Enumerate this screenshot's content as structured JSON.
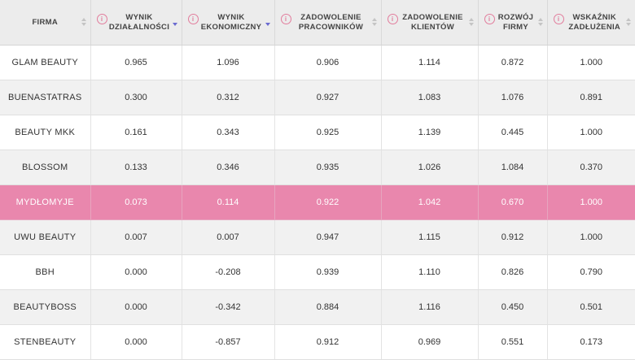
{
  "table": {
    "columns": [
      {
        "id": "firma",
        "lines": [
          "Firma"
        ],
        "info": false,
        "sort": "none"
      },
      {
        "id": "wynik-dzialalnosci",
        "lines": [
          "Wynik",
          "Działalności"
        ],
        "info": true,
        "sort": "desc"
      },
      {
        "id": "wynik-ekonomiczny",
        "lines": [
          "Wynik",
          "Ekonomiczny"
        ],
        "info": true,
        "sort": "desc"
      },
      {
        "id": "zadowolenie-pracownikow",
        "lines": [
          "Zadowolenie",
          "Pracowników"
        ],
        "info": true,
        "sort": "none"
      },
      {
        "id": "zadowolenie-klientow",
        "lines": [
          "Zadowolenie",
          "Klientów"
        ],
        "info": true,
        "sort": "none"
      },
      {
        "id": "rozwoj-firmy",
        "lines": [
          "Rozwój",
          "Firmy"
        ],
        "info": true,
        "sort": "none"
      },
      {
        "id": "wskaznik-zadluzenia",
        "lines": [
          "Wskaźnik",
          "Zadłużenia"
        ],
        "info": true,
        "sort": "none"
      }
    ],
    "info_glyph": "i",
    "rows": [
      {
        "firm": "Glam Beauty",
        "values": [
          "0.965",
          "1.096",
          "0.906",
          "1.114",
          "0.872",
          "1.000"
        ],
        "highlighted": false
      },
      {
        "firm": "Buenastatras",
        "values": [
          "0.300",
          "0.312",
          "0.927",
          "1.083",
          "1.076",
          "0.891"
        ],
        "highlighted": false
      },
      {
        "firm": "Beauty MKK",
        "values": [
          "0.161",
          "0.343",
          "0.925",
          "1.139",
          "0.445",
          "1.000"
        ],
        "highlighted": false
      },
      {
        "firm": "Blossom",
        "values": [
          "0.133",
          "0.346",
          "0.935",
          "1.026",
          "1.084",
          "0.370"
        ],
        "highlighted": false
      },
      {
        "firm": "Mydłomyje",
        "values": [
          "0.073",
          "0.114",
          "0.922",
          "1.042",
          "0.670",
          "1.000"
        ],
        "highlighted": true
      },
      {
        "firm": "UwU Beauty",
        "values": [
          "0.007",
          "0.007",
          "0.947",
          "1.115",
          "0.912",
          "1.000"
        ],
        "highlighted": false
      },
      {
        "firm": "BBH",
        "values": [
          "0.000",
          "-0.208",
          "0.939",
          "1.110",
          "0.826",
          "0.790"
        ],
        "highlighted": false
      },
      {
        "firm": "BeautyBoss",
        "values": [
          "0.000",
          "-0.342",
          "0.884",
          "1.116",
          "0.450",
          "0.501"
        ],
        "highlighted": false
      },
      {
        "firm": "StenBeauty",
        "values": [
          "0.000",
          "-0.857",
          "0.912",
          "0.969",
          "0.551",
          "0.173"
        ],
        "highlighted": false
      }
    ]
  },
  "colors": {
    "accent": "#e987ad",
    "sort_active": "#6a6ad0",
    "header_bg": "#ececec"
  },
  "icons": {
    "info": "info-icon",
    "sort": "sort-icon"
  }
}
